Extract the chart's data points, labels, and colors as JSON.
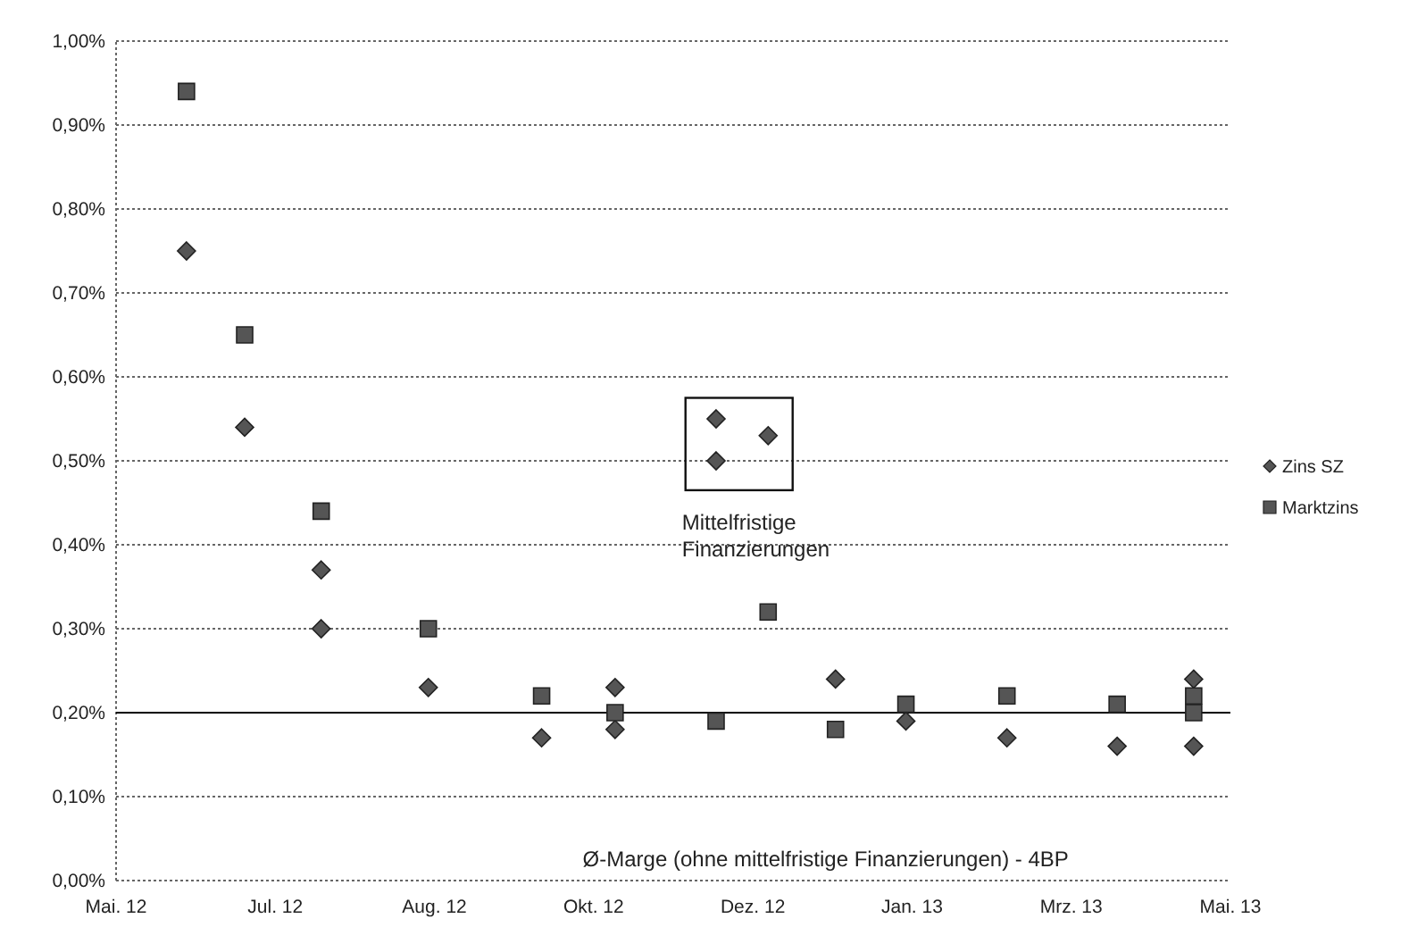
{
  "chart_data": {
    "type": "scatter",
    "xlim": [
      "2012-05-15",
      "2013-05-14"
    ],
    "xticks": [
      {
        "value": "2012-05-15",
        "label": "Mai. 12"
      },
      {
        "value": "2012-07-06",
        "label": "Jul. 12"
      },
      {
        "value": "2012-08-27",
        "label": "Aug. 12"
      },
      {
        "value": "2012-10-18",
        "label": "Okt. 12"
      },
      {
        "value": "2012-12-09",
        "label": "Dez. 12"
      },
      {
        "value": "2013-01-30",
        "label": "Jan. 13"
      },
      {
        "value": "2013-03-23",
        "label": "Mrz. 13"
      },
      {
        "value": "2013-05-14",
        "label": "Mai. 13"
      }
    ],
    "ylim": [
      0,
      1
    ],
    "yticks": [
      {
        "value": 0,
        "label": "0,00%"
      },
      {
        "value": 0.1,
        "label": "0,10%"
      },
      {
        "value": 0.2,
        "label": "0,20%"
      },
      {
        "value": 0.3,
        "label": "0,30%"
      },
      {
        "value": 0.4,
        "label": "0,40%"
      },
      {
        "value": 0.5,
        "label": "0,50%"
      },
      {
        "value": 0.6,
        "label": "0,60%"
      },
      {
        "value": 0.7,
        "label": "0,70%"
      },
      {
        "value": 0.8,
        "label": "0,80%"
      },
      {
        "value": 0.9,
        "label": "0,90%"
      },
      {
        "value": 1,
        "label": "1,00%"
      }
    ],
    "grid": "y",
    "legend": "right",
    "series": [
      {
        "name": "Zins SZ",
        "color": "#555555",
        "marker": "diamond",
        "x": [
          "2012-06-07",
          "2012-06-26",
          "2012-07-21",
          "2012-07-21",
          "2012-08-25",
          "2012-10-01",
          "2012-10-25",
          "2012-10-25",
          "2012-11-27",
          "2012-11-27",
          "2012-12-14",
          "2013-01-05",
          "2013-01-28",
          "2013-03-02",
          "2013-04-07",
          "2013-05-02",
          "2013-05-02"
        ],
        "values": [
          0.75,
          0.54,
          0.37,
          0.3,
          0.23,
          0.17,
          0.23,
          0.18,
          0.55,
          0.5,
          0.53,
          0.24,
          0.19,
          0.17,
          0.16,
          0.24,
          0.16
        ]
      },
      {
        "name": "Marktzins",
        "color": "#555555",
        "marker": "square",
        "x": [
          "2012-06-07",
          "2012-06-26",
          "2012-07-21",
          "2012-08-25",
          "2012-10-01",
          "2012-10-25",
          "2012-11-27",
          "2012-12-14",
          "2013-01-05",
          "2013-01-28",
          "2013-03-02",
          "2013-04-07",
          "2013-05-02",
          "2013-05-02"
        ],
        "values": [
          0.94,
          0.65,
          0.44,
          0.3,
          0.22,
          0.2,
          0.19,
          0.32,
          0.18,
          0.21,
          0.22,
          0.21,
          0.22,
          0.2
        ]
      }
    ],
    "ref_lines": [
      {
        "axis": "y",
        "value": 0.2,
        "color": "#000000",
        "line_style": "solid"
      }
    ],
    "annotations": [
      "Mittelfristige Finanzierungen",
      "Ø-Marge (ohne mittelfristige Finanzierungen) - 4BP"
    ]
  }
}
